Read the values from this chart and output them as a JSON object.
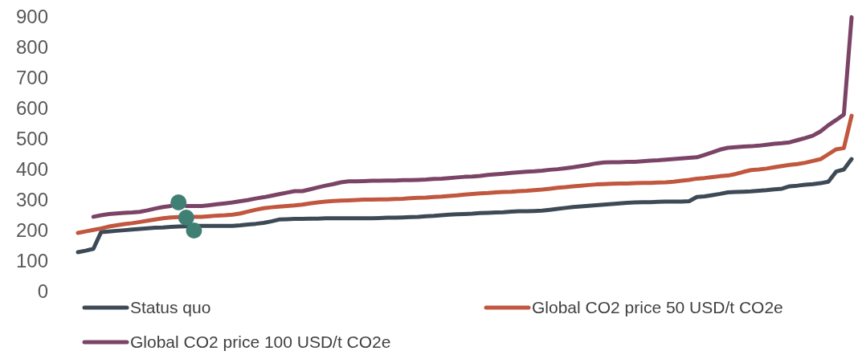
{
  "chart_data": {
    "type": "line",
    "categories": [
      null,
      null,
      null,
      null,
      null,
      null,
      null,
      null,
      null,
      null,
      null,
      null,
      null,
      null,
      null,
      null,
      null,
      null,
      null,
      null,
      null,
      null,
      null,
      null,
      null,
      null,
      null,
      null,
      null,
      null,
      null,
      null,
      null,
      null,
      null,
      null,
      null,
      null,
      null,
      null,
      null,
      null,
      null,
      null,
      null,
      null,
      null,
      null,
      null,
      null,
      null,
      null,
      null,
      null,
      null,
      null,
      null,
      null,
      null,
      null,
      null,
      null,
      null,
      null,
      null,
      null,
      null,
      null,
      null,
      null,
      null,
      null,
      null,
      null,
      null,
      null,
      null,
      null,
      null,
      null,
      null,
      null,
      null,
      null,
      null,
      null,
      null,
      null,
      null,
      null,
      null,
      null,
      null,
      null,
      null,
      null,
      null,
      null,
      null,
      null,
      null
    ],
    "ylim": [
      0,
      900
    ],
    "yticks": [
      0,
      100,
      200,
      300,
      400,
      500,
      600,
      700,
      800,
      900
    ],
    "tick_labels": "y",
    "legend": "bottom",
    "line_style": "solid",
    "series": [
      {
        "name": "Status quo",
        "color": "#3d4a55",
        "values": [
          129,
          134,
          140,
          195,
          197,
          199,
          201,
          203,
          205,
          207,
          209,
          210,
          212,
          213,
          214,
          215,
          215,
          215,
          215,
          215,
          215,
          217,
          220,
          222,
          225,
          230,
          236,
          237,
          238,
          238,
          239,
          239,
          240,
          240,
          240,
          240,
          240,
          240,
          240,
          241,
          242,
          242,
          243,
          244,
          245,
          247,
          248,
          250,
          252,
          253,
          254,
          255,
          257,
          258,
          259,
          260,
          262,
          263,
          263,
          264,
          265,
          268,
          271,
          274,
          277,
          279,
          281,
          283,
          285,
          287,
          289,
          291,
          292,
          293,
          293,
          294,
          295,
          295,
          295,
          296,
          310,
          312,
          316,
          320,
          325,
          326,
          327,
          328,
          330,
          332,
          335,
          337,
          345,
          347,
          350,
          352,
          355,
          360,
          393,
          400,
          434
        ]
      },
      {
        "name": "Global CO2 price 50 USD/t CO2e",
        "color": "#c0573e",
        "values": [
          192,
          197,
          202,
          207,
          213,
          217,
          221,
          224,
          228,
          232,
          236,
          240,
          243,
          244,
          null,
          245,
          245,
          247,
          249,
          250,
          252,
          256,
          262,
          268,
          273,
          276,
          278,
          280,
          282,
          285,
          289,
          292,
          295,
          297,
          298,
          299,
          300,
          301,
          301,
          302,
          302,
          303,
          304,
          306,
          307,
          308,
          310,
          311,
          313,
          315,
          318,
          320,
          322,
          323,
          325,
          326,
          327,
          329,
          330,
          332,
          334,
          337,
          340,
          342,
          345,
          347,
          349,
          351,
          352,
          353,
          354,
          354,
          355,
          356,
          356,
          357,
          358,
          360,
          363,
          366,
          370,
          372,
          375,
          378,
          380,
          385,
          392,
          398,
          400,
          403,
          407,
          411,
          415,
          418,
          422,
          428,
          434,
          450,
          466,
          470,
          576
        ]
      },
      {
        "name": "Global CO2 price 100 USD/t CO2e",
        "color": "#7b4467",
        "values": [
          null,
          null,
          245,
          250,
          254,
          256,
          258,
          259,
          261,
          266,
          272,
          277,
          280,
          null,
          280,
          280,
          280,
          283,
          286,
          289,
          292,
          296,
          300,
          305,
          309,
          314,
          319,
          324,
          329,
          329,
          335,
          341,
          347,
          352,
          358,
          361,
          361,
          362,
          363,
          363,
          364,
          364,
          365,
          365,
          366,
          367,
          369,
          370,
          372,
          374,
          376,
          377,
          379,
          382,
          384,
          386,
          389,
          391,
          393,
          394,
          396,
          399,
          401,
          404,
          407,
          411,
          415,
          420,
          423,
          424,
          424,
          425,
          425,
          427,
          429,
          430,
          432,
          434,
          436,
          438,
          440,
          448,
          456,
          465,
          471,
          473,
          475,
          476,
          478,
          481,
          484,
          486,
          489,
          496,
          503,
          511,
          525,
          545,
          562,
          580,
          899
        ]
      },
      {
        "type": "scatter",
        "marker": "circle",
        "color": "#3f7f74",
        "values": [
          null,
          null,
          null,
          null,
          null,
          null,
          null,
          null,
          null,
          null,
          null,
          null,
          null,
          292,
          242,
          200,
          null,
          null,
          null,
          null,
          null,
          null,
          null,
          null,
          null,
          null,
          null,
          null,
          null,
          null,
          null,
          null,
          null,
          null,
          null,
          null,
          null,
          null,
          null,
          null,
          null,
          null,
          null,
          null,
          null,
          null,
          null,
          null,
          null,
          null,
          null,
          null,
          null,
          null,
          null,
          null,
          null,
          null,
          null,
          null,
          null,
          null,
          null,
          null,
          null,
          null,
          null,
          null,
          null,
          null,
          null,
          null,
          null,
          null,
          null,
          null,
          null,
          null,
          null,
          null,
          null,
          null,
          null,
          null,
          null,
          null,
          null,
          null,
          null,
          null,
          null,
          null,
          null,
          null,
          null,
          null,
          null,
          null,
          null,
          null,
          null
        ]
      }
    ]
  }
}
